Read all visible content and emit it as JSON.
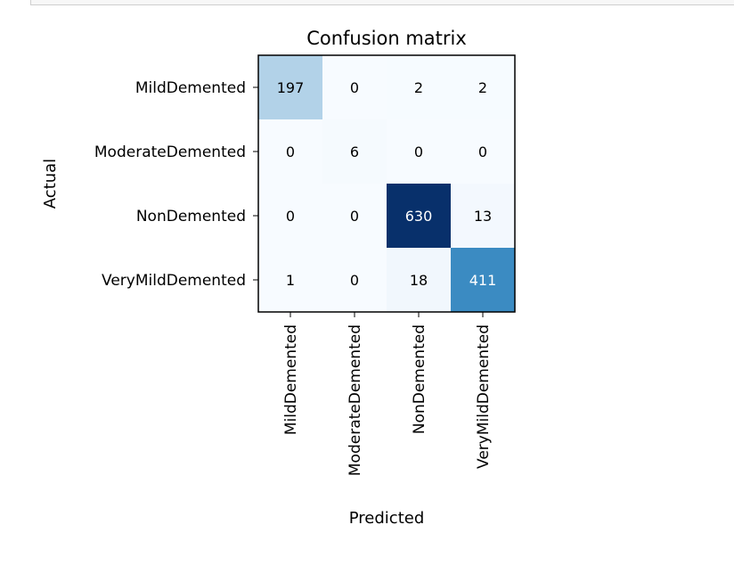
{
  "chart_data": {
    "type": "heatmap",
    "title": "Confusion matrix",
    "xlabel": "Predicted",
    "ylabel": "Actual",
    "x_categories": [
      "MildDemented",
      "ModerateDemented",
      "NonDemented",
      "VeryMildDemented"
    ],
    "y_categories": [
      "MildDemented",
      "ModerateDemented",
      "NonDemented",
      "VeryMildDemented"
    ],
    "values": [
      [
        197,
        0,
        2,
        2
      ],
      [
        0,
        6,
        0,
        0
      ],
      [
        0,
        0,
        630,
        13
      ],
      [
        1,
        0,
        18,
        411
      ]
    ],
    "colormap": "Blues",
    "grid": false
  }
}
